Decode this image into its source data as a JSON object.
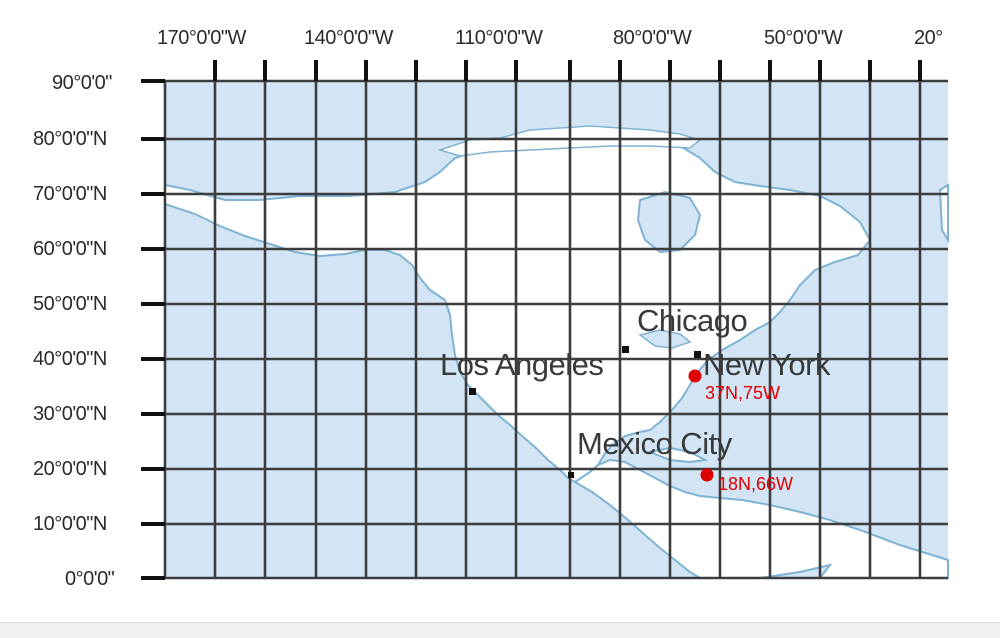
{
  "map": {
    "longitude_labels": [
      "170°0'0\"W",
      "140°0'0\"W",
      "110°0'0\"W",
      "80°0'0\"W",
      "50°0'0\"W",
      "20°"
    ],
    "latitude_labels": [
      "90°0'0\"",
      "80°0'0\"N",
      "70°0'0\"N",
      "60°0'0\"N",
      "50°0'0\"N",
      "40°0'0\"N",
      "30°0'0\"N",
      "20°0'0\"N",
      "10°0'0\"N",
      "0°0'0\""
    ],
    "cities": [
      {
        "name": "Chicago",
        "lat": 41.9,
        "lon": -87.6
      },
      {
        "name": "Los Angeles",
        "lat": 34.0,
        "lon": -118.2
      },
      {
        "name": "New York",
        "lat": 40.7,
        "lon": -74.0
      },
      {
        "name": "Mexico City",
        "lat": 19.4,
        "lon": -99.1
      }
    ],
    "points": [
      {
        "label": "37N,75W",
        "lat": 37,
        "lon": -75
      },
      {
        "label": "18N,66W",
        "lat": 18,
        "lon": -66
      }
    ],
    "colors": {
      "ocean": "#d3e5f4",
      "land": "#ffffff",
      "coastline": "#7fb3d3",
      "grid": "#3d3d3d",
      "point": "#e00000"
    }
  }
}
